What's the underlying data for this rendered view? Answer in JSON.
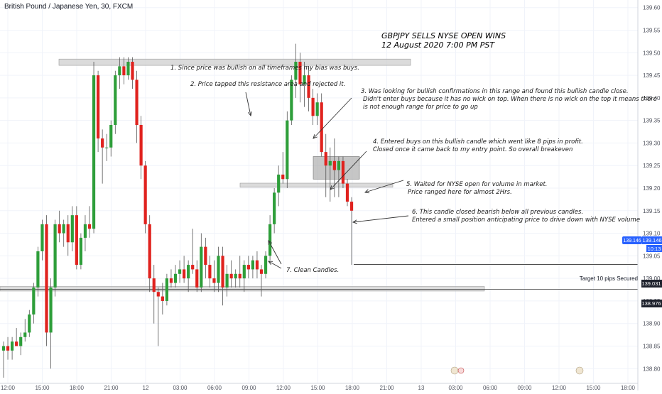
{
  "header": {
    "symbol": "British Pound / Japanese Yen, 30, FXCM"
  },
  "colors": {
    "up": "#26a69a",
    "up_body": "#2e9e3a",
    "down": "#e0221e",
    "grid": "#f0f3fa",
    "zone": "#c8c8c8",
    "price_label_bg": "#2962ff"
  },
  "price_labels": {
    "current_price": "139.146",
    "countdown": "10:13",
    "target_price": "139.031",
    "support_price": "138.976"
  },
  "target_label": "Target 10 pips Secured",
  "annotations": {
    "title_line1": "GBPJPY SELLS NYSE OPEN WINS",
    "title_line2": "12 August 2020 7:00 PM PST",
    "note1": "1. Since price was bullish on all timeframes my bias was buys.",
    "note2": "2. Price tapped this resistance area and rejected it.",
    "note3_line1": "3. Was looking for bullish confirmations in this range and found this bullish candle close.",
    "note3_line2": "Didn't enter buys because it has no wick on top. When there is no wick on the top it means there",
    "note3_line3": "is not enough range for price to go up",
    "note4_line1": "4. Entered buys on this bullish candle which went like 8 pips in profit.",
    "note4_line2": "Closed once it came back to my entry point. So overall breakeven",
    "note5_line1": "5. Waited for NYSE open for volume in market.",
    "note5_line2": "Price ranged here for almost 2Hrs.",
    "note6_line1": "6. This candle closed bearish below all previous candles.",
    "note6_line2": "Entered a small position anticipating price to drive down with NYSE volume",
    "note7": "7. Clean Candles."
  },
  "chart_data": {
    "type": "candlestick",
    "title": "British Pound / Japanese Yen, 30, FXCM",
    "ylim": [
      138.78,
      139.62
    ],
    "y_ticks": [
      "139.60",
      "139.55",
      "139.50",
      "139.45",
      "139.40",
      "139.35",
      "139.30",
      "139.25",
      "139.20",
      "139.15",
      "139.10",
      "139.05",
      "139.00",
      "138.95",
      "138.90",
      "138.85",
      "138.80"
    ],
    "x_ticks": [
      "12:00",
      "15:00",
      "18:00",
      "21:00",
      "12",
      "03:00",
      "06:00",
      "09:00",
      "12:00",
      "15:00",
      "18:00",
      "21:00",
      "13",
      "03:00",
      "06:00",
      "09:00",
      "12:00",
      "15:00",
      "18:00"
    ],
    "candles": [
      {
        "o": 138.84,
        "h": 138.86,
        "l": 138.78,
        "c": 138.85
      },
      {
        "o": 138.85,
        "h": 138.87,
        "l": 138.82,
        "c": 138.84
      },
      {
        "o": 138.84,
        "h": 138.87,
        "l": 138.82,
        "c": 138.86
      },
      {
        "o": 138.86,
        "h": 138.89,
        "l": 138.85,
        "c": 138.85
      },
      {
        "o": 138.85,
        "h": 138.88,
        "l": 138.83,
        "c": 138.87
      },
      {
        "o": 138.87,
        "h": 138.91,
        "l": 138.86,
        "c": 138.88
      },
      {
        "o": 138.88,
        "h": 138.93,
        "l": 138.87,
        "c": 138.92
      },
      {
        "o": 138.92,
        "h": 138.99,
        "l": 138.9,
        "c": 138.98
      },
      {
        "o": 138.98,
        "h": 139.07,
        "l": 138.96,
        "c": 139.06
      },
      {
        "o": 139.06,
        "h": 139.13,
        "l": 139.04,
        "c": 139.12
      },
      {
        "o": 139.12,
        "h": 139.14,
        "l": 138.85,
        "c": 138.88
      },
      {
        "o": 138.88,
        "h": 139.0,
        "l": 138.8,
        "c": 138.98
      },
      {
        "o": 138.98,
        "h": 139.13,
        "l": 138.96,
        "c": 139.12
      },
      {
        "o": 139.12,
        "h": 139.15,
        "l": 139.08,
        "c": 139.1
      },
      {
        "o": 139.1,
        "h": 139.13,
        "l": 139.07,
        "c": 139.12
      },
      {
        "o": 139.12,
        "h": 139.14,
        "l": 139.05,
        "c": 139.08
      },
      {
        "o": 139.08,
        "h": 139.16,
        "l": 139.06,
        "c": 139.14
      },
      {
        "o": 139.14,
        "h": 139.16,
        "l": 139.02,
        "c": 139.03
      },
      {
        "o": 139.03,
        "h": 139.1,
        "l": 139.02,
        "c": 139.09
      },
      {
        "o": 139.09,
        "h": 139.14,
        "l": 139.06,
        "c": 139.12
      },
      {
        "o": 139.12,
        "h": 139.16,
        "l": 139.09,
        "c": 139.11
      },
      {
        "o": 139.11,
        "h": 139.48,
        "l": 139.1,
        "c": 139.45
      },
      {
        "o": 139.45,
        "h": 139.46,
        "l": 139.28,
        "c": 139.31
      },
      {
        "o": 139.31,
        "h": 139.33,
        "l": 139.21,
        "c": 139.29
      },
      {
        "o": 139.29,
        "h": 139.32,
        "l": 139.26,
        "c": 139.29
      },
      {
        "o": 139.29,
        "h": 139.35,
        "l": 139.27,
        "c": 139.34
      },
      {
        "o": 139.34,
        "h": 139.46,
        "l": 139.32,
        "c": 139.45
      },
      {
        "o": 139.45,
        "h": 139.49,
        "l": 139.42,
        "c": 139.47
      },
      {
        "o": 139.47,
        "h": 139.49,
        "l": 139.43,
        "c": 139.45
      },
      {
        "o": 139.45,
        "h": 139.49,
        "l": 139.44,
        "c": 139.48
      },
      {
        "o": 139.48,
        "h": 139.49,
        "l": 139.42,
        "c": 139.44
      },
      {
        "o": 139.44,
        "h": 139.46,
        "l": 139.3,
        "c": 139.34
      },
      {
        "o": 139.34,
        "h": 139.36,
        "l": 139.22,
        "c": 139.25
      },
      {
        "o": 139.25,
        "h": 139.26,
        "l": 139.1,
        "c": 139.12
      },
      {
        "o": 139.12,
        "h": 139.14,
        "l": 138.97,
        "c": 139.0
      },
      {
        "o": 139.0,
        "h": 139.03,
        "l": 138.9,
        "c": 138.97
      },
      {
        "o": 138.97,
        "h": 138.98,
        "l": 138.85,
        "c": 138.96
      },
      {
        "o": 138.96,
        "h": 138.99,
        "l": 138.92,
        "c": 138.95
      },
      {
        "o": 138.95,
        "h": 139.01,
        "l": 138.94,
        "c": 139.0
      },
      {
        "o": 139.0,
        "h": 139.02,
        "l": 138.98,
        "c": 138.99
      },
      {
        "o": 138.99,
        "h": 139.03,
        "l": 138.98,
        "c": 139.01
      },
      {
        "o": 139.01,
        "h": 139.04,
        "l": 138.99,
        "c": 139.02
      },
      {
        "o": 139.02,
        "h": 139.05,
        "l": 138.99,
        "c": 139.0
      },
      {
        "o": 139.0,
        "h": 139.04,
        "l": 138.97,
        "c": 139.03
      },
      {
        "o": 139.03,
        "h": 139.11,
        "l": 139.01,
        "c": 139.02
      },
      {
        "o": 139.02,
        "h": 139.04,
        "l": 138.97,
        "c": 138.98
      },
      {
        "o": 138.98,
        "h": 139.1,
        "l": 138.97,
        "c": 139.07
      },
      {
        "o": 139.07,
        "h": 139.09,
        "l": 139.0,
        "c": 139.03
      },
      {
        "o": 139.03,
        "h": 139.05,
        "l": 138.98,
        "c": 139.0
      },
      {
        "o": 139.0,
        "h": 139.04,
        "l": 138.97,
        "c": 138.99
      },
      {
        "o": 138.99,
        "h": 139.07,
        "l": 138.97,
        "c": 139.05
      },
      {
        "o": 139.05,
        "h": 139.07,
        "l": 138.94,
        "c": 138.98
      },
      {
        "o": 138.98,
        "h": 139.03,
        "l": 138.96,
        "c": 139.01
      },
      {
        "o": 139.01,
        "h": 139.04,
        "l": 138.98,
        "c": 139.0
      },
      {
        "o": 139.0,
        "h": 139.02,
        "l": 138.98,
        "c": 139.01
      },
      {
        "o": 139.01,
        "h": 139.05,
        "l": 138.98,
        "c": 139.0
      },
      {
        "o": 139.0,
        "h": 139.04,
        "l": 138.97,
        "c": 139.03
      },
      {
        "o": 139.03,
        "h": 139.05,
        "l": 139.0,
        "c": 139.02
      },
      {
        "o": 139.02,
        "h": 139.05,
        "l": 139.0,
        "c": 139.04
      },
      {
        "o": 139.04,
        "h": 139.06,
        "l": 139.0,
        "c": 139.02
      },
      {
        "o": 139.02,
        "h": 139.03,
        "l": 138.96,
        "c": 139.01
      },
      {
        "o": 139.01,
        "h": 139.06,
        "l": 139.0,
        "c": 139.05
      },
      {
        "o": 139.05,
        "h": 139.14,
        "l": 139.04,
        "c": 139.12
      },
      {
        "o": 139.12,
        "h": 139.2,
        "l": 139.1,
        "c": 139.19
      },
      {
        "o": 139.19,
        "h": 139.25,
        "l": 139.16,
        "c": 139.23
      },
      {
        "o": 139.23,
        "h": 139.28,
        "l": 139.21,
        "c": 139.22
      },
      {
        "o": 139.22,
        "h": 139.37,
        "l": 139.2,
        "c": 139.35
      },
      {
        "o": 139.35,
        "h": 139.45,
        "l": 139.34,
        "c": 139.44
      },
      {
        "o": 139.44,
        "h": 139.52,
        "l": 139.4,
        "c": 139.48
      },
      {
        "o": 139.48,
        "h": 139.5,
        "l": 139.39,
        "c": 139.43
      },
      {
        "o": 139.43,
        "h": 139.48,
        "l": 139.38,
        "c": 139.45
      },
      {
        "o": 139.45,
        "h": 139.47,
        "l": 139.37,
        "c": 139.4
      },
      {
        "o": 139.4,
        "h": 139.42,
        "l": 139.34,
        "c": 139.36
      },
      {
        "o": 139.36,
        "h": 139.41,
        "l": 139.34,
        "c": 139.39
      },
      {
        "o": 139.39,
        "h": 139.41,
        "l": 139.27,
        "c": 139.28
      },
      {
        "o": 139.28,
        "h": 139.32,
        "l": 139.18,
        "c": 139.25
      },
      {
        "o": 139.25,
        "h": 139.29,
        "l": 139.17,
        "c": 139.26
      },
      {
        "o": 139.26,
        "h": 139.31,
        "l": 139.18,
        "c": 139.24
      },
      {
        "o": 139.24,
        "h": 139.27,
        "l": 139.18,
        "c": 139.26
      },
      {
        "o": 139.26,
        "h": 139.27,
        "l": 139.2,
        "c": 139.21
      },
      {
        "o": 139.21,
        "h": 139.22,
        "l": 139.16,
        "c": 139.17
      },
      {
        "o": 139.17,
        "h": 139.18,
        "l": 139.03,
        "c": 139.15
      }
    ]
  }
}
